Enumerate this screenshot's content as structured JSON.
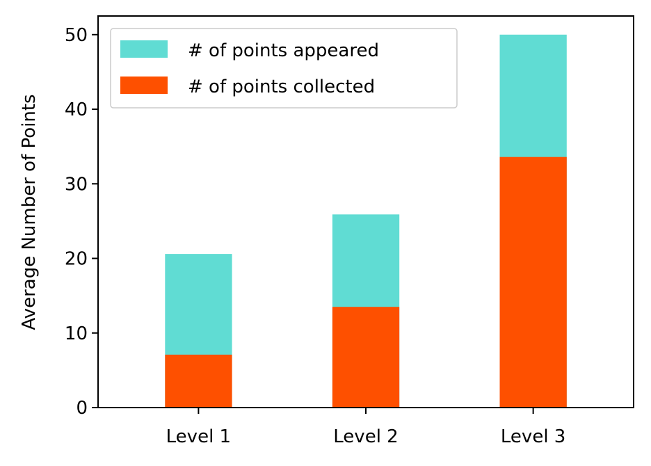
{
  "chart_data": {
    "type": "bar",
    "stacked": false,
    "overlay": true,
    "categories": [
      "Level 1",
      "Level 2",
      "Level 3"
    ],
    "series": [
      {
        "name": "# of points appeared",
        "values": [
          20.6,
          25.9,
          50.0
        ],
        "color": "#60dcd3"
      },
      {
        "name": "# of points collected",
        "values": [
          7.1,
          13.5,
          33.6
        ],
        "color": "#fe5000"
      }
    ],
    "xlabel": "",
    "ylabel": "Average Number of Points",
    "ylim": [
      0,
      52.5
    ],
    "yticks": [
      0,
      10,
      20,
      30,
      40,
      50
    ],
    "grid": false,
    "legend_position": "top-left"
  }
}
